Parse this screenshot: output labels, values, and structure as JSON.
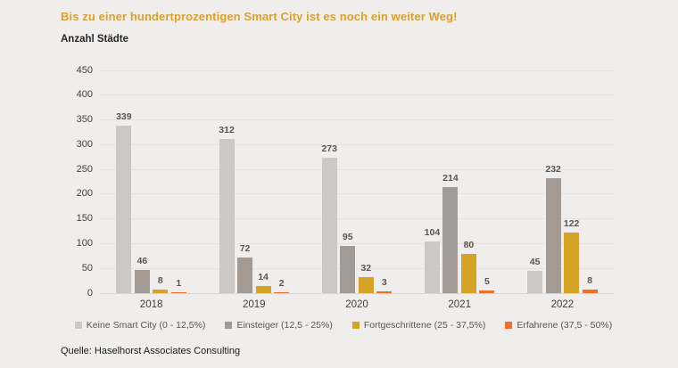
{
  "header": {
    "title": "Bis zu einer hundertprozentigen Smart City ist es noch ein weiter Weg!"
  },
  "chart_data": {
    "type": "bar",
    "title": "Bis zu einer hundertprozentigen Smart City ist es noch ein weiter Weg!",
    "xlabel": "",
    "ylabel": "Anzahl Städte",
    "categories": [
      "2018",
      "2019",
      "2020",
      "2021",
      "2022"
    ],
    "series": [
      {
        "name": "Keine Smart City (0 - 12,5%)",
        "color": "#cbc8c5",
        "values": [
          339,
          312,
          273,
          104,
          45
        ]
      },
      {
        "name": "Einsteiger (12,5 - 25%)",
        "color": "#a29b95",
        "values": [
          46,
          72,
          95,
          214,
          232
        ]
      },
      {
        "name": "Fortgeschrittene (25 - 37,5%)",
        "color": "#d5a426",
        "values": [
          8,
          14,
          32,
          80,
          122
        ]
      },
      {
        "name": "Erfahrene (37,5 - 50%)",
        "color": "#f07124",
        "values": [
          1,
          2,
          3,
          5,
          8
        ]
      }
    ],
    "ylim": [
      0,
      450
    ],
    "ytick_step": 50,
    "grid": true,
    "legend_position": "bottom"
  },
  "footer": {
    "source": "Quelle: Haselhorst Associates Consulting"
  },
  "colors": {
    "background": "#f0eeec",
    "title": "#d9a02c",
    "value_label": "#595550",
    "axis_label": "#404040",
    "gridline": "#e5e2df"
  }
}
